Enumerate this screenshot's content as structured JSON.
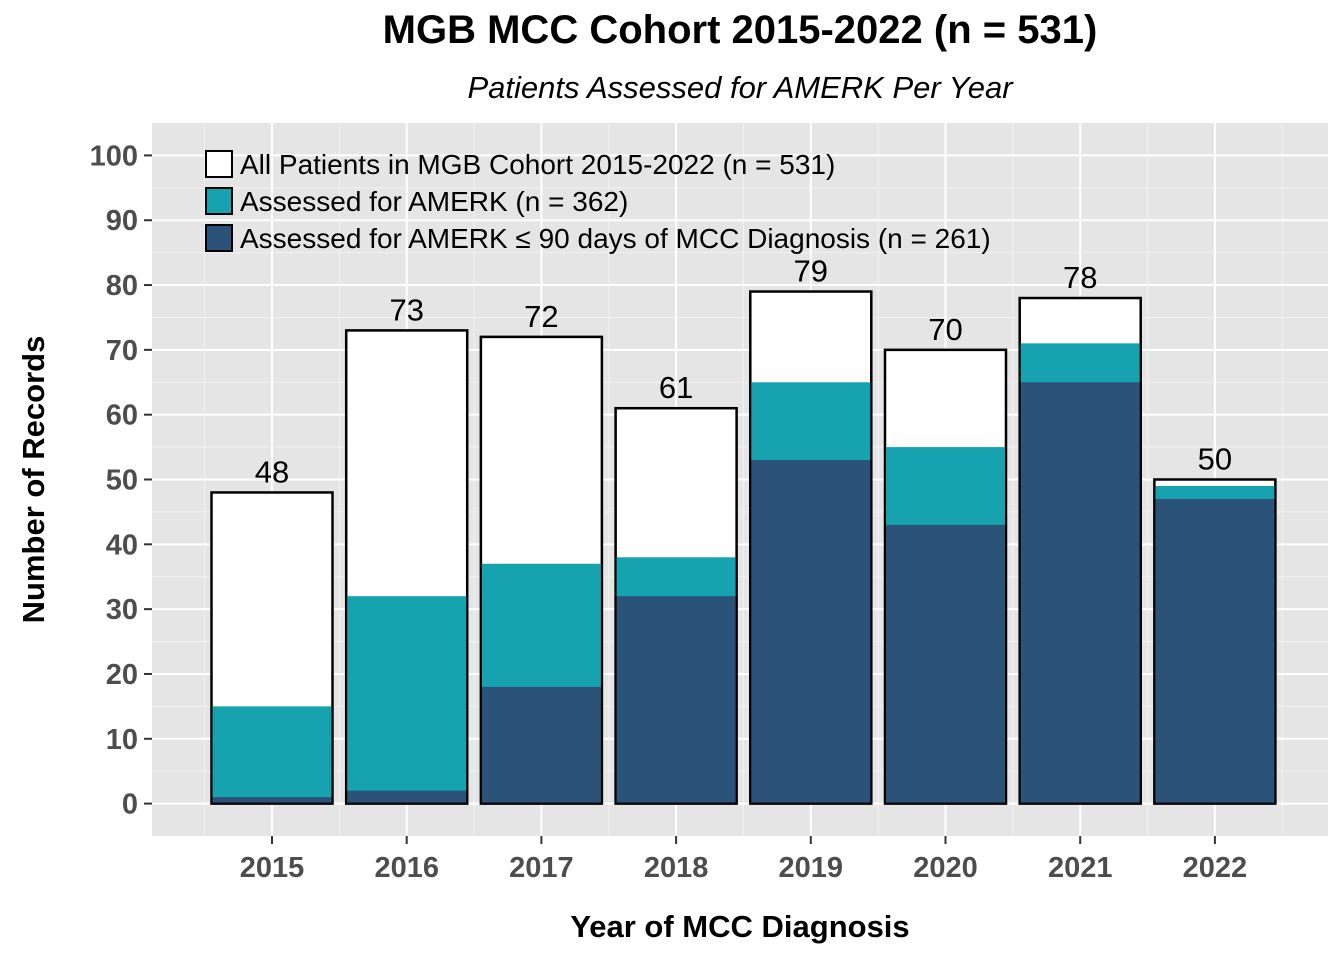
{
  "chart_data": {
    "type": "bar",
    "title": "MGB MCC Cohort 2015-2022 (n = 531)",
    "subtitle": "Patients Assessed for AMERK Per Year",
    "xlabel": "Year of MCC Diagnosis",
    "ylabel": "Number of Records",
    "categories": [
      "2015",
      "2016",
      "2017",
      "2018",
      "2019",
      "2020",
      "2021",
      "2022"
    ],
    "ylim": [
      -5,
      105
    ],
    "y_ticks": [
      0,
      10,
      20,
      30,
      40,
      50,
      60,
      70,
      80,
      90,
      100
    ],
    "grid": true,
    "legend_position": "top-left",
    "overlay": true,
    "series": [
      {
        "name": "All Patients in MGB Cohort 2015-2022 (n = 531)",
        "values": [
          48,
          73,
          72,
          61,
          79,
          70,
          78,
          50
        ],
        "color": "#ffffff"
      },
      {
        "name": "Assessed for AMERK (n = 362)",
        "values": [
          15,
          32,
          37,
          38,
          65,
          55,
          71,
          49
        ],
        "color": "#17a2b0"
      },
      {
        "name": "Assessed for AMERK ≤ 90 days of MCC Diagnosis (n = 261)",
        "values": [
          1,
          2,
          18,
          32,
          53,
          43,
          65,
          47
        ],
        "color": "#2b5278"
      }
    ],
    "data_labels": [
      48,
      73,
      72,
      61,
      79,
      70,
      78,
      50
    ]
  }
}
